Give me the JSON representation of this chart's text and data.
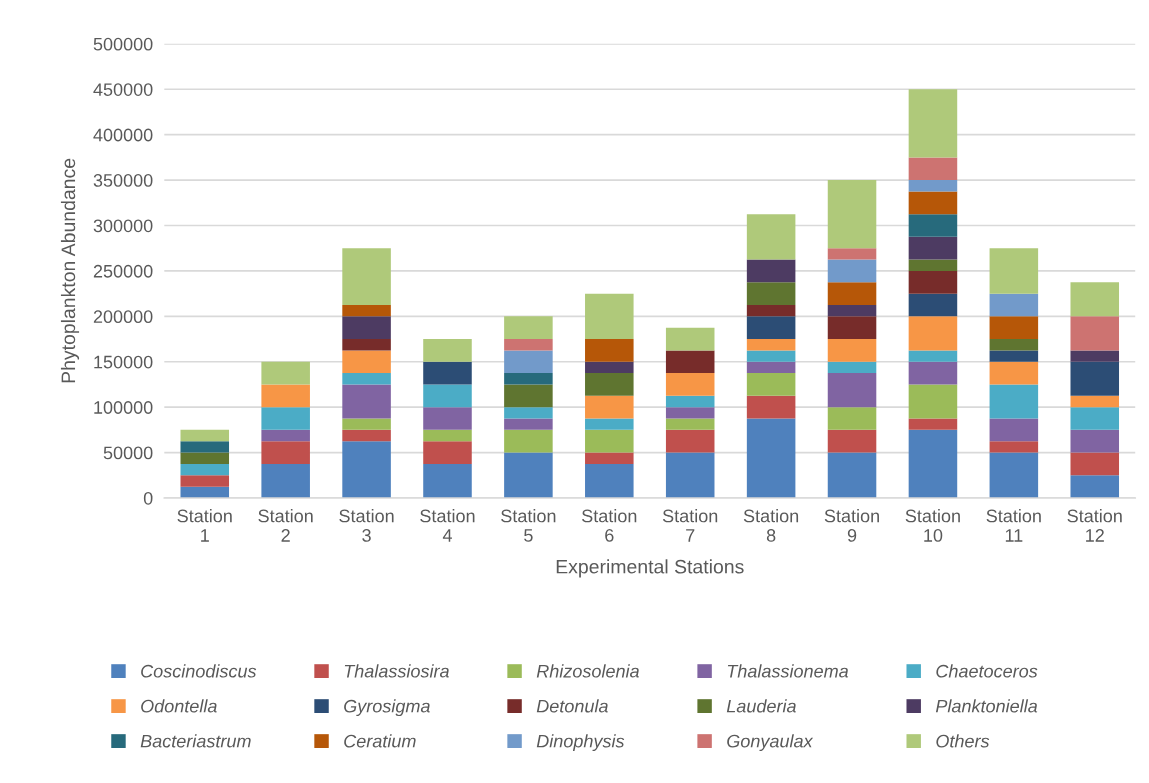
{
  "chart_data": {
    "type": "bar",
    "stacked": true,
    "xlabel": "Experimental Stations",
    "ylabel": "Phytoplankton Abundance",
    "categories": [
      "Station 1",
      "Station 2",
      "Station 3",
      "Station 4",
      "Station 5",
      "Station 6",
      "Station 7",
      "Station 8",
      "Station 9",
      "Station 10",
      "Station 11",
      "Station 12"
    ],
    "ylim": [
      0,
      500000
    ],
    "yticks": [
      0,
      50000,
      100000,
      150000,
      200000,
      250000,
      300000,
      350000,
      400000,
      450000,
      500000
    ],
    "grid": "y",
    "legend": "bottom",
    "series": [
      {
        "name": "Coscinodiscus",
        "color": "#4f81bd",
        "values": [
          12500,
          37500,
          62500,
          37500,
          50000,
          37500,
          50000,
          87500,
          50000,
          75000,
          50000,
          25000
        ]
      },
      {
        "name": "Thalassiosira",
        "color": "#c0504d",
        "values": [
          12500,
          25000,
          12500,
          25000,
          0,
          12500,
          25000,
          25000,
          25000,
          12500,
          12500,
          25000
        ]
      },
      {
        "name": "Rhizosolenia",
        "color": "#9bbb59",
        "values": [
          0,
          0,
          12500,
          12500,
          25000,
          25000,
          12500,
          25000,
          25000,
          37500,
          0,
          0
        ]
      },
      {
        "name": "Thalassionema",
        "color": "#8064a2",
        "values": [
          0,
          12500,
          37500,
          25000,
          12500,
          0,
          12500,
          12500,
          37500,
          25000,
          25000,
          25000
        ]
      },
      {
        "name": "Chaetoceros",
        "color": "#4bacc6",
        "values": [
          12500,
          25000,
          12500,
          25000,
          12500,
          12500,
          12500,
          12500,
          12500,
          12500,
          37500,
          25000
        ]
      },
      {
        "name": "Odontella",
        "color": "#f79646",
        "values": [
          0,
          25000,
          25000,
          0,
          0,
          25000,
          25000,
          12500,
          25000,
          37500,
          25000,
          12500
        ]
      },
      {
        "name": "Gyrosigma",
        "color": "#2c4d75",
        "values": [
          0,
          0,
          0,
          25000,
          0,
          0,
          0,
          25000,
          0,
          25000,
          12500,
          37500
        ]
      },
      {
        "name": "Detonula",
        "color": "#772c2a",
        "values": [
          0,
          0,
          12500,
          0,
          0,
          0,
          25000,
          12500,
          25000,
          25000,
          0,
          0
        ]
      },
      {
        "name": "Lauderia",
        "color": "#5f7530",
        "values": [
          12500,
          0,
          0,
          0,
          25000,
          25000,
          0,
          25000,
          0,
          12500,
          12500,
          0
        ]
      },
      {
        "name": "Planktoniella",
        "color": "#4d3b62",
        "values": [
          0,
          0,
          25000,
          0,
          0,
          12500,
          0,
          25000,
          12500,
          25000,
          0,
          12500
        ]
      },
      {
        "name": "Bacteriastrum",
        "color": "#276a7c",
        "values": [
          12500,
          0,
          0,
          0,
          12500,
          0,
          0,
          0,
          0,
          25000,
          0,
          0
        ]
      },
      {
        "name": "Ceratium",
        "color": "#b65708",
        "values": [
          0,
          0,
          12500,
          0,
          0,
          25000,
          0,
          0,
          25000,
          25000,
          25000,
          0
        ]
      },
      {
        "name": "Dinophysis",
        "color": "#729aca",
        "values": [
          0,
          0,
          0,
          0,
          25000,
          0,
          0,
          0,
          25000,
          12500,
          25000,
          0
        ]
      },
      {
        "name": "Gonyaulax",
        "color": "#cd7371",
        "values": [
          0,
          0,
          0,
          0,
          12500,
          0,
          0,
          0,
          12500,
          25000,
          0,
          37500
        ]
      },
      {
        "name": "Others",
        "color": "#afc97a",
        "values": [
          12500,
          25000,
          62500,
          25000,
          25000,
          50000,
          25000,
          50000,
          75000,
          75000,
          50000,
          37500
        ]
      }
    ]
  }
}
